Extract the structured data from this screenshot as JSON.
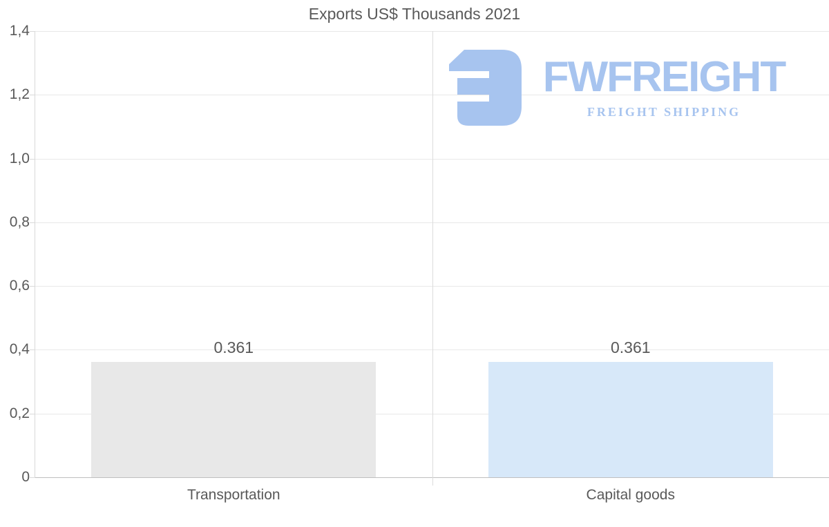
{
  "chart_data": {
    "type": "bar",
    "title": "Exports US$ Thousands 2021",
    "categories": [
      "Transportation",
      "Capital goods"
    ],
    "values": [
      0.361,
      0.361
    ],
    "value_labels": [
      "0.361",
      "0.361"
    ],
    "series_colors": [
      "#e8e8e8",
      "#d7e8f9"
    ],
    "ylim": [
      0,
      1.4
    ],
    "y_ticks": [
      {
        "value": 1.4,
        "label": "1,4"
      },
      {
        "value": 1.2,
        "label": "1,2"
      },
      {
        "value": 1.0,
        "label": "1,0"
      },
      {
        "value": 0.8,
        "label": "0,8"
      },
      {
        "value": 0.6,
        "label": "0,6"
      },
      {
        "value": 0.4,
        "label": "0,4"
      },
      {
        "value": 0.2,
        "label": "0,2"
      },
      {
        "value": 0.0,
        "label": "0"
      }
    ],
    "xlabel": "",
    "ylabel": "",
    "grid": "horizontal",
    "legend": "none",
    "bar_width_fraction": 0.718
  },
  "logo": {
    "wordmark": "FWFREIGHT",
    "subtitle": "FREIGHT SHIPPING",
    "color": "#a7c4ef",
    "icon": "fwfreight-mark-icon"
  },
  "colors": {
    "background": "#ffffff",
    "grid": "#e8e8e8",
    "divider": "#dcdcdc",
    "axis_left": "#d9d9d9",
    "axis_bottom": "#bfbfbf",
    "text": "#595959"
  }
}
